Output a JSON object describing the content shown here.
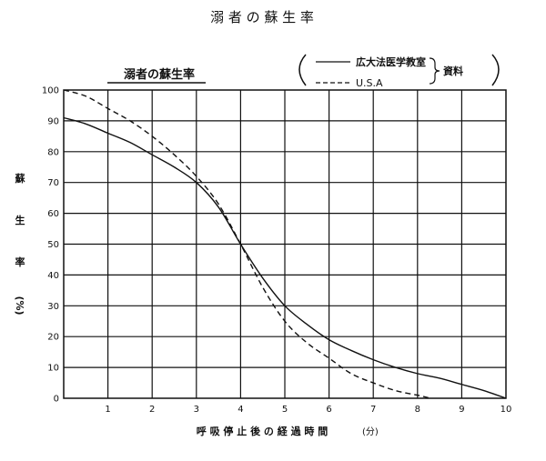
{
  "page_title": "溺 者 の 蘇 生 率",
  "chart_data": {
    "type": "line",
    "title": "溺者の蘇生率",
    "xlabel": "呼 吸 停 止 後 の 経 過 時 間",
    "xunit": "(分)",
    "ylabel_chars": [
      "蘇",
      "生",
      "率"
    ],
    "yunit": "(%)",
    "xlim": [
      0,
      10
    ],
    "ylim": [
      0,
      100
    ],
    "x_ticks": [
      1,
      2,
      3,
      4,
      5,
      6,
      7,
      8,
      9,
      10
    ],
    "y_ticks": [
      0,
      10,
      20,
      30,
      40,
      50,
      60,
      70,
      80,
      90,
      100
    ],
    "grid": true,
    "legend": {
      "source_label": "資料",
      "position": "top-right"
    },
    "series": [
      {
        "name": "広大法医学教室",
        "style": "solid",
        "x": [
          0,
          0.5,
          1,
          1.5,
          2,
          2.5,
          3,
          3.5,
          4,
          4.5,
          5,
          5.5,
          6,
          6.5,
          7,
          7.5,
          8,
          8.5,
          9,
          9.5,
          10
        ],
        "y": [
          91,
          89,
          86,
          83,
          79,
          75,
          70,
          62,
          50,
          39,
          30,
          24,
          19,
          15.5,
          12.5,
          10,
          8,
          6.5,
          4.5,
          2.5,
          0
        ]
      },
      {
        "name": "U.S.A",
        "style": "dashed",
        "x": [
          0,
          0.5,
          1,
          1.5,
          2,
          2.5,
          3,
          3.5,
          4,
          4.5,
          5,
          5.5,
          6,
          6.5,
          7,
          7.5,
          8,
          8.3
        ],
        "y": [
          100,
          98,
          94,
          90,
          85,
          79,
          72,
          63,
          50,
          36,
          25,
          18,
          13,
          8,
          5,
          2.5,
          1,
          0
        ]
      }
    ]
  }
}
